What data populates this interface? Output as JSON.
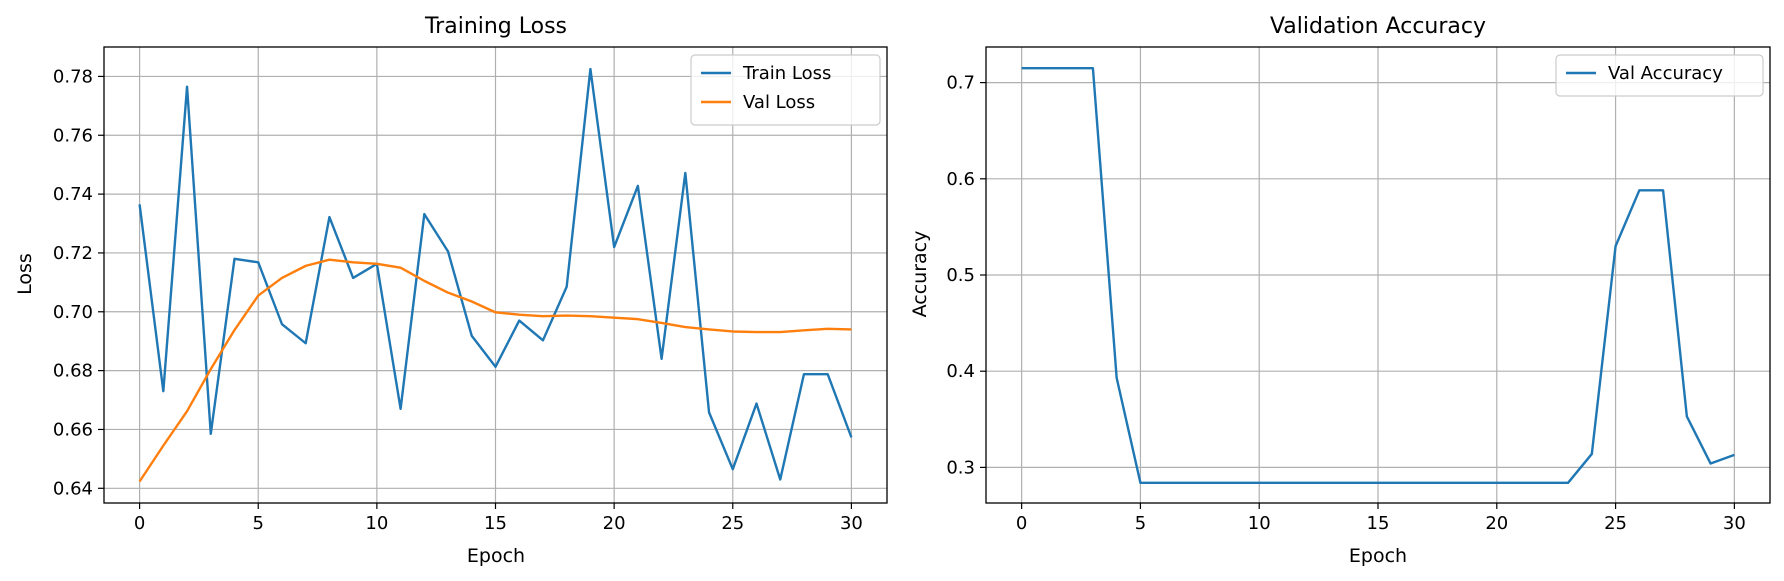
{
  "chart_data": [
    {
      "type": "line",
      "title": "Training Loss",
      "xlabel": "Epoch",
      "ylabel": "Loss",
      "xlim": [
        -1.5,
        31.5
      ],
      "ylim": [
        0.635,
        0.79
      ],
      "xticks": [
        0,
        5,
        10,
        15,
        20,
        25,
        30
      ],
      "yticks": [
        0.64,
        0.66,
        0.68,
        0.7,
        0.72,
        0.74,
        0.76,
        0.78
      ],
      "ytick_labels": [
        "0.64",
        "0.66",
        "0.68",
        "0.70",
        "0.72",
        "0.74",
        "0.76",
        "0.78"
      ],
      "grid": true,
      "legend_position": "top-right",
      "x": [
        0,
        1,
        2,
        3,
        4,
        5,
        6,
        7,
        8,
        9,
        10,
        11,
        12,
        13,
        14,
        15,
        16,
        17,
        18,
        19,
        20,
        21,
        22,
        23,
        24,
        25,
        26,
        27,
        28,
        29,
        30
      ],
      "series": [
        {
          "name": "Train Loss",
          "color": "#1f77b4",
          "values": [
            0.7365,
            0.673,
            0.7765,
            0.6585,
            0.718,
            0.7168,
            0.6958,
            0.6893,
            0.7322,
            0.7115,
            0.7163,
            0.667,
            0.7332,
            0.7205,
            0.6918,
            0.6813,
            0.697,
            0.6903,
            0.7085,
            0.7825,
            0.722,
            0.7428,
            0.684,
            0.7472,
            0.6658,
            0.6465,
            0.6688,
            0.643,
            0.6788,
            0.6788,
            0.6573
          ]
        },
        {
          "name": "Val Loss",
          "color": "#ff7f0e",
          "values": [
            0.6423,
            0.6545,
            0.6662,
            0.6805,
            0.6938,
            0.7055,
            0.7115,
            0.7156,
            0.7177,
            0.7168,
            0.7163,
            0.715,
            0.7105,
            0.7065,
            0.7035,
            0.6998,
            0.699,
            0.6985,
            0.6987,
            0.6985,
            0.698,
            0.6975,
            0.6962,
            0.6948,
            0.694,
            0.6933,
            0.6931,
            0.6931,
            0.6937,
            0.6942,
            0.694
          ]
        }
      ]
    },
    {
      "type": "line",
      "title": "Validation Accuracy",
      "xlabel": "Epoch",
      "ylabel": "Accuracy",
      "xlim": [
        -1.5,
        31.5
      ],
      "ylim": [
        0.263,
        0.737
      ],
      "xticks": [
        0,
        5,
        10,
        15,
        20,
        25,
        30
      ],
      "yticks": [
        0.3,
        0.4,
        0.5,
        0.6,
        0.7
      ],
      "ytick_labels": [
        "0.3",
        "0.4",
        "0.5",
        "0.6",
        "0.7"
      ],
      "grid": true,
      "legend_position": "top-right",
      "x": [
        0,
        1,
        2,
        3,
        4,
        5,
        6,
        7,
        8,
        9,
        10,
        11,
        12,
        13,
        14,
        15,
        16,
        17,
        18,
        19,
        20,
        21,
        22,
        23,
        24,
        25,
        26,
        27,
        28,
        29,
        30
      ],
      "series": [
        {
          "name": "Val Accuracy",
          "color": "#1f77b4",
          "values": [
            0.715,
            0.715,
            0.715,
            0.715,
            0.393,
            0.284,
            0.284,
            0.284,
            0.284,
            0.284,
            0.284,
            0.284,
            0.284,
            0.284,
            0.284,
            0.284,
            0.284,
            0.284,
            0.284,
            0.284,
            0.284,
            0.284,
            0.284,
            0.284,
            0.314,
            0.53,
            0.588,
            0.588,
            0.353,
            0.304,
            0.313
          ]
        }
      ]
    }
  ]
}
